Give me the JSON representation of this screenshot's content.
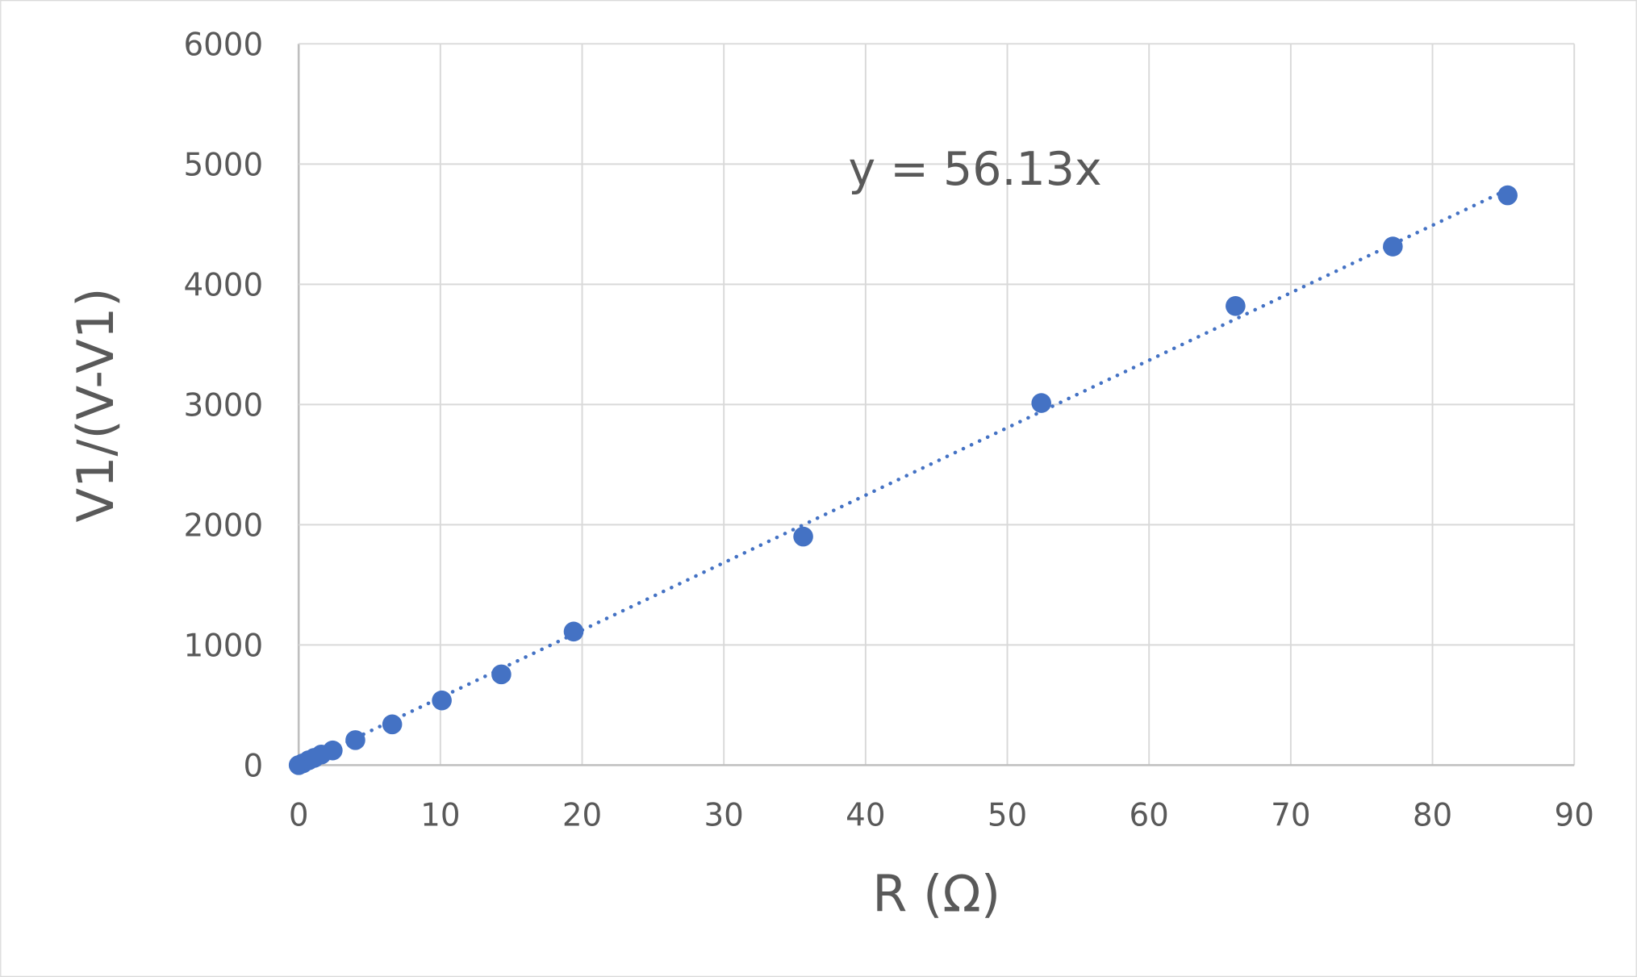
{
  "chart_data": {
    "type": "scatter",
    "title": "",
    "xlabel": "R (Ω)",
    "ylabel": "V1/(V-V1)",
    "xlim": [
      0,
      90
    ],
    "ylim": [
      0,
      6000
    ],
    "xticks": [
      "0",
      "10",
      "20",
      "30",
      "40",
      "50",
      "60",
      "70",
      "80",
      "90"
    ],
    "yticks": [
      "0",
      "1000",
      "2000",
      "3000",
      "4000",
      "5000",
      "6000"
    ],
    "grid": true,
    "legend": "none",
    "marker_color": "#4472C4",
    "series": [
      {
        "x": [
          0,
          0.3,
          0.7,
          1.1,
          1.6,
          2.4,
          4.0,
          6.6,
          10.1,
          14.3,
          19.4,
          35.6,
          52.4,
          66.1,
          77.2,
          85.3
        ],
        "y": [
          0,
          15,
          40,
          60,
          88,
          122,
          208,
          339,
          538,
          755,
          1111,
          1901,
          3012,
          3819,
          4314,
          4740
        ]
      }
    ],
    "trendline": {
      "type": "linear",
      "slope": 56.13,
      "intercept": 0,
      "style": "dotted",
      "equation": "y = 56.13x"
    }
  }
}
